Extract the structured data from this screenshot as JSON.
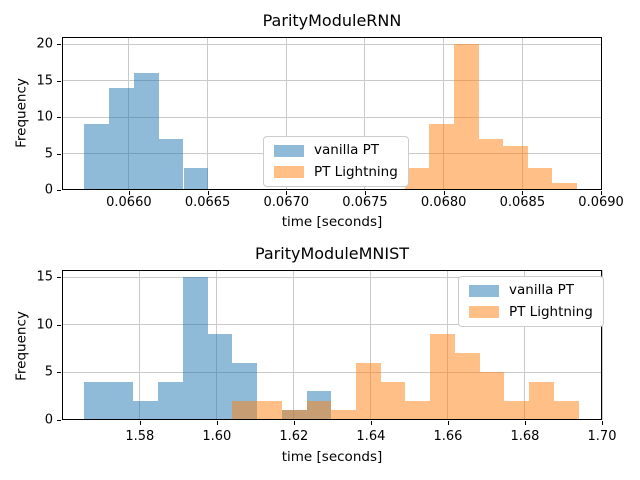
{
  "colors": {
    "vanilla_pt": "#1f77b4",
    "pt_lightning": "#ff7f0e",
    "grid": "#c9c9c9",
    "spine": "#000000",
    "legend_border": "#cccccc"
  },
  "chart_data": [
    {
      "type": "bar",
      "subtype": "histogram",
      "title": "ParityModuleRNN",
      "xlabel": "time [seconds]",
      "ylabel": "Frequency",
      "xlim": [
        0.065575,
        0.069006
      ],
      "ylim": [
        0,
        21
      ],
      "grid": true,
      "legend_loc": "center",
      "xticks": [
        0.066,
        0.0665,
        0.067,
        0.0675,
        0.068,
        0.0685,
        0.069
      ],
      "xtick_labels": [
        "0.0660",
        "0.0665",
        "0.0670",
        "0.0675",
        "0.0680",
        "0.0685",
        "0.0690"
      ],
      "yticks": [
        0,
        5,
        10,
        15,
        20
      ],
      "ytick_labels": [
        "0",
        "5",
        "10",
        "15",
        "20"
      ],
      "series": [
        {
          "name": "vanilla PT",
          "color": "#1f77b4",
          "alpha": 0.5,
          "bin_start": 0.065715,
          "bin_width": 0.000158,
          "counts": [
            9,
            14,
            16,
            7,
            3
          ]
        },
        {
          "name": "PT Lightning",
          "color": "#ff7f0e",
          "alpha": 0.5,
          "bin_start": 0.067752,
          "bin_width": 0.0001565,
          "counts": [
            3,
            9,
            20,
            7,
            6,
            3,
            1
          ]
        }
      ]
    },
    {
      "type": "bar",
      "subtype": "histogram",
      "title": "ParityModuleMNIST",
      "xlabel": "time [seconds]",
      "ylabel": "Frequency",
      "xlim": [
        1.5598,
        1.7
      ],
      "ylim": [
        0,
        15.75
      ],
      "grid": true,
      "legend_loc": "upper right",
      "xticks": [
        1.58,
        1.6,
        1.62,
        1.64,
        1.66,
        1.68,
        1.7
      ],
      "xtick_labels": [
        "1.58",
        "1.60",
        "1.62",
        "1.64",
        "1.66",
        "1.68",
        "1.70"
      ],
      "yticks": [
        0,
        5,
        10,
        15
      ],
      "ytick_labels": [
        "0",
        "5",
        "10",
        "15"
      ],
      "series": [
        {
          "name": "vanilla PT",
          "color": "#1f77b4",
          "alpha": 0.5,
          "bin_start": 1.56552,
          "bin_width": 0.00642,
          "counts": [
            4,
            4,
            2,
            4,
            15,
            9,
            6,
            0,
            1,
            3
          ]
        },
        {
          "name": "PT Lightning",
          "color": "#ff7f0e",
          "alpha": 0.5,
          "bin_start": 1.60404,
          "bin_width": 0.00642,
          "counts": [
            2,
            2,
            1,
            2,
            1,
            6,
            4,
            2,
            9,
            7,
            5,
            2,
            4,
            2
          ]
        }
      ]
    }
  ]
}
